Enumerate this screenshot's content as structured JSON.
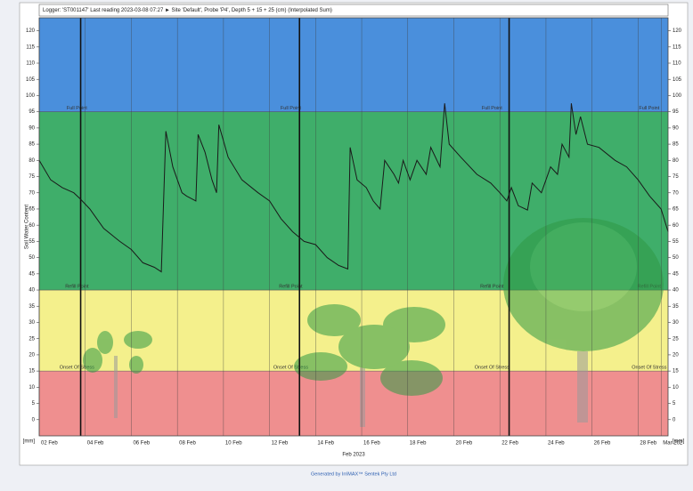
{
  "chart_data": {
    "type": "line",
    "title": "Logger: 'ST001147'   Last reading 2023-03-08 07:27   ► Site 'Default', Probe 'P4', Depth 5 + 15 + 25 (cm) (Interpolated Sum)",
    "ylabel": "Soil Water Content",
    "yunit": "[mm]",
    "xlabel": "Feb 2023",
    "footer": "Generated by IrriMAX™ Sentek Pty Ltd",
    "xlim": [
      2,
      29.3
    ],
    "ylim": [
      -5,
      124
    ],
    "xticks": [
      {
        "value": 2,
        "label": "02 Feb"
      },
      {
        "value": 4,
        "label": "04 Feb"
      },
      {
        "value": 6,
        "label": "06 Feb"
      },
      {
        "value": 8,
        "label": "08 Feb"
      },
      {
        "value": 10,
        "label": "10 Feb"
      },
      {
        "value": 12,
        "label": "12 Feb"
      },
      {
        "value": 14,
        "label": "14 Feb"
      },
      {
        "value": 16,
        "label": "16 Feb"
      },
      {
        "value": 18,
        "label": "18 Feb"
      },
      {
        "value": 20,
        "label": "20 Feb"
      },
      {
        "value": 22,
        "label": "22 Feb"
      },
      {
        "value": 24,
        "label": "24 Feb"
      },
      {
        "value": 26,
        "label": "26 Feb"
      },
      {
        "value": 28,
        "label": "28 Feb"
      },
      {
        "value": 29,
        "label": "Mar 202"
      }
    ],
    "yticks": [
      0,
      5,
      10,
      15,
      20,
      25,
      30,
      35,
      40,
      45,
      50,
      55,
      60,
      65,
      70,
      75,
      80,
      85,
      90,
      95,
      100,
      105,
      110,
      115,
      120
    ],
    "zones": [
      {
        "label": "Full Point",
        "value": 95
      },
      {
        "label": "Refill Point",
        "value": 40
      },
      {
        "label": "Onset Of Stress",
        "value": 15
      }
    ],
    "band_colors": [
      "#4a8fdc",
      "#3fae6a",
      "#f4f08c",
      "#ef8f8f"
    ],
    "markers": [
      3.8,
      13.3,
      22.4
    ],
    "grid": true,
    "series": [
      {
        "color": "#1a1a1a",
        "x": [
          2.0,
          2.5,
          3.0,
          3.5,
          3.8,
          4.2,
          4.8,
          5.5,
          6.0,
          6.5,
          7.0,
          7.3,
          7.5,
          7.8,
          8.2,
          8.4,
          8.8,
          8.9,
          9.2,
          9.5,
          9.7,
          9.8,
          10.2,
          10.8,
          11.5,
          12.0,
          12.5,
          13.0,
          13.5,
          14.0,
          14.5,
          15.0,
          15.4,
          15.5,
          15.8,
          16.2,
          16.5,
          16.8,
          17.0,
          17.4,
          17.6,
          17.8,
          18.1,
          18.4,
          18.8,
          19.0,
          19.4,
          19.6,
          19.8,
          20.3,
          21.0,
          21.6,
          22.0,
          22.3,
          22.5,
          22.8,
          23.2,
          23.4,
          23.8,
          24.2,
          24.5,
          24.7,
          25.0,
          25.1,
          25.3,
          25.5,
          25.8,
          26.3,
          27.0,
          27.5,
          28.0,
          28.5,
          29.0,
          29.3
        ],
        "values": [
          80,
          74,
          71.6,
          70,
          68,
          65,
          59,
          55,
          52.5,
          48.4,
          47,
          45.6,
          89,
          78,
          70,
          69,
          67.5,
          88,
          82.5,
          74,
          70,
          91,
          81,
          74,
          70,
          67.5,
          62,
          58,
          55,
          54,
          50,
          47.6,
          46.5,
          84,
          74,
          71.6,
          67.5,
          65,
          80,
          75.7,
          73,
          80,
          74,
          80,
          75.7,
          84,
          78,
          97.6,
          85,
          81,
          75.7,
          73,
          70,
          67.5,
          71.6,
          66,
          64.7,
          73,
          70,
          78,
          75.7,
          85,
          81,
          97.6,
          88,
          93.5,
          85,
          84,
          80,
          78,
          74,
          69,
          65,
          58
        ]
      }
    ]
  }
}
